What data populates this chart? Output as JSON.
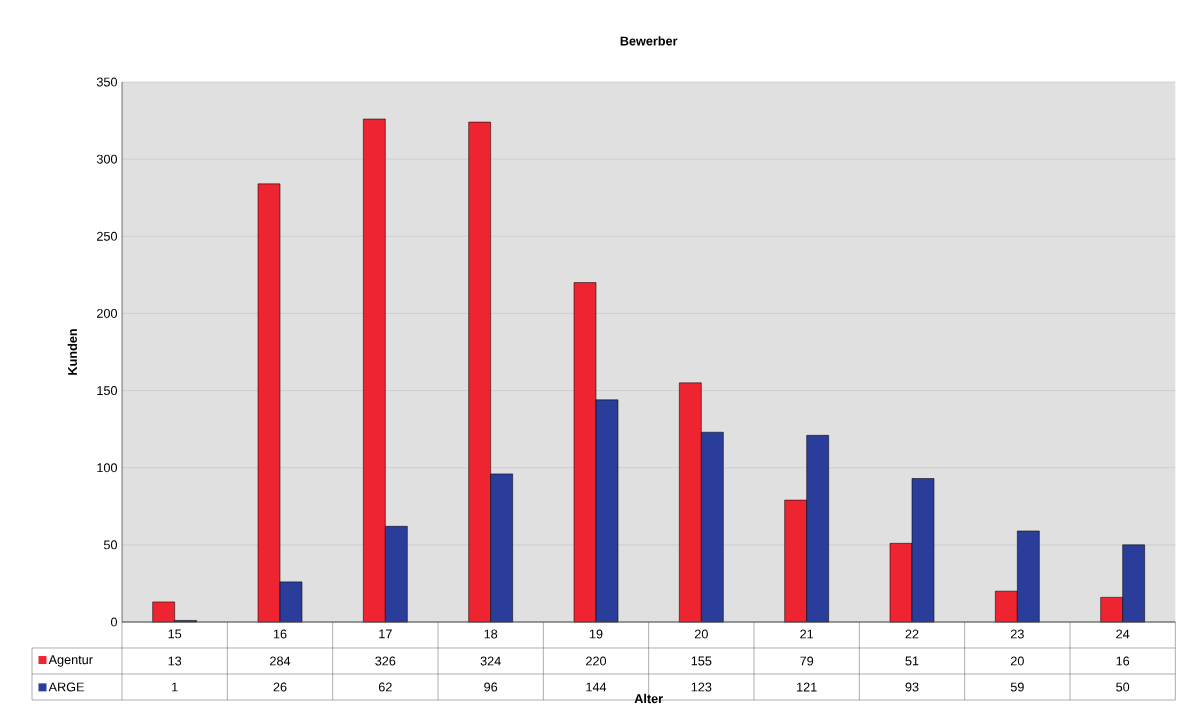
{
  "chart_data": {
    "type": "bar",
    "title": "Bewerber",
    "xlabel": "Alter",
    "ylabel": "Kunden",
    "categories": [
      "15",
      "16",
      "17",
      "18",
      "19",
      "20",
      "21",
      "22",
      "23",
      "24"
    ],
    "series": [
      {
        "name": "Agentur",
        "color": "#ee2430",
        "values": [
          13,
          284,
          326,
          324,
          220,
          155,
          79,
          51,
          20,
          16
        ]
      },
      {
        "name": "ARGE",
        "color": "#2a3d9a",
        "values": [
          1,
          26,
          62,
          96,
          144,
          123,
          121,
          93,
          59,
          50
        ]
      }
    ],
    "ylim": [
      0,
      350
    ],
    "yticks": [
      0,
      50,
      100,
      150,
      200,
      250,
      300,
      350
    ],
    "grid": "y",
    "legend": "bottom left",
    "data_labels": true
  }
}
